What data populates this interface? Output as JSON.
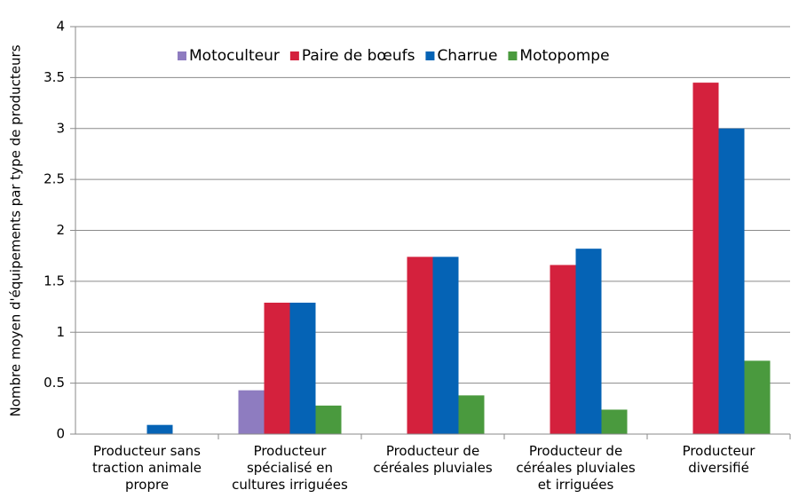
{
  "chart_data": {
    "type": "bar",
    "y_label": "Nombre moyen d'équipements par type de producteurs",
    "categories": [
      "Producteur sans traction animale propre",
      "Producteur spécialisé en cultures irriguées",
      "Producteur de céréales pluviales",
      "Producteur de céréales pluviales et irriguées",
      "Producteur diversifié"
    ],
    "series": [
      {
        "name": "Motoculteur",
        "color": "#8e7cc0",
        "values": [
          0,
          0.43,
          0,
          0,
          0
        ]
      },
      {
        "name": "Paire de bœufs",
        "color": "#d4213d",
        "values": [
          0,
          1.29,
          1.74,
          1.66,
          3.45
        ]
      },
      {
        "name": "Charrue",
        "color": "#0563b5",
        "values": [
          0.09,
          1.29,
          1.74,
          1.82,
          3.0
        ]
      },
      {
        "name": "Motopompe",
        "color": "#4a9a3e",
        "values": [
          0,
          0.28,
          0.38,
          0.24,
          0.72
        ]
      }
    ],
    "ylim": [
      0,
      4
    ],
    "yticks": [
      0,
      0.5,
      1,
      1.5,
      2,
      2.5,
      3,
      3.5,
      4
    ],
    "grid": true,
    "legend": "top"
  }
}
